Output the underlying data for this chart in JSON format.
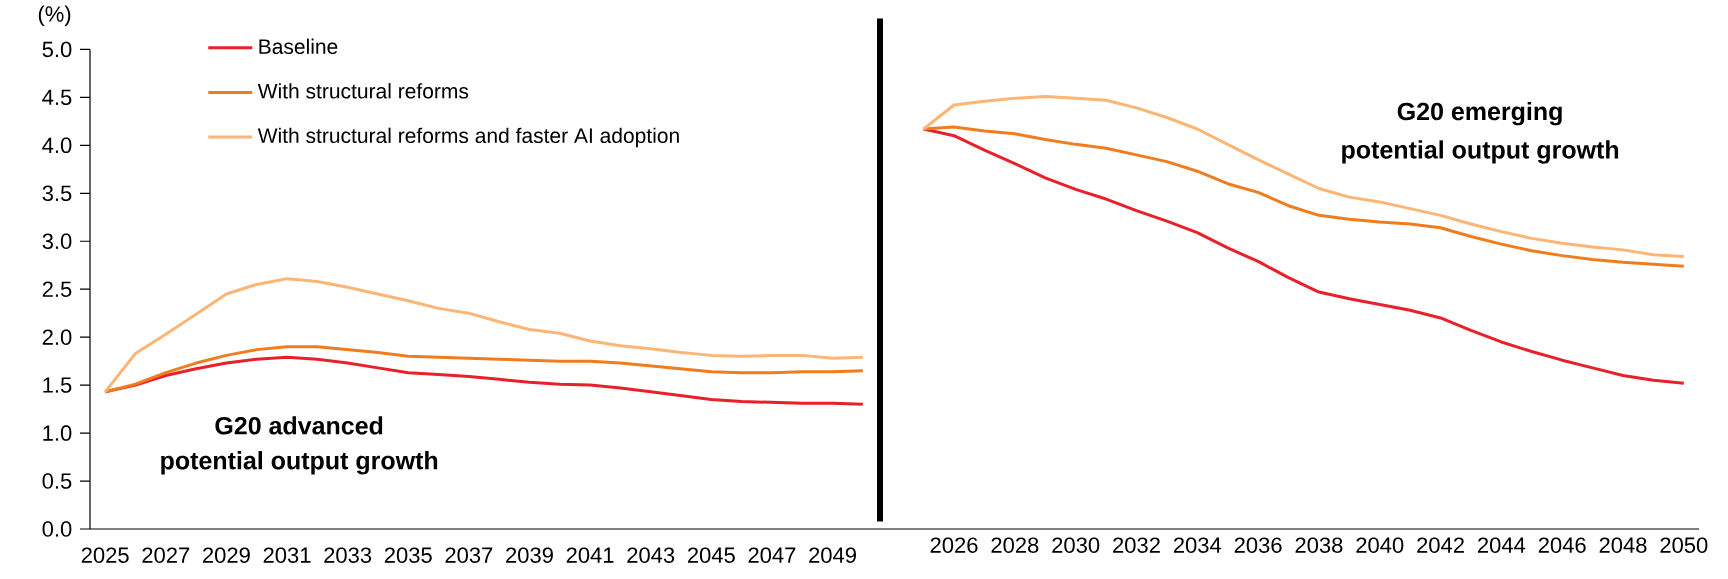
{
  "chart_data": [
    {
      "type": "line",
      "ylabel": "(%)",
      "legend": "top left",
      "grid": false,
      "categories": [
        "2025",
        null,
        "2027",
        null,
        "2029",
        null,
        "2031",
        null,
        "2033",
        null,
        "2035",
        null,
        "2037",
        null,
        "2039",
        null,
        "2041",
        null,
        "2043",
        null,
        "2045",
        null,
        "2047",
        null,
        "2049",
        null
      ],
      "ylim": [
        0,
        5
      ],
      "yticks": [
        {
          "value": 0,
          "label": "0.0"
        },
        0.5,
        {
          "value": 1,
          "label": "1.0"
        },
        1.5,
        {
          "value": 2,
          "label": "2.0"
        },
        2.5,
        {
          "value": 3,
          "label": "3.0"
        },
        3.5,
        {
          "value": 4,
          "label": "4.0"
        },
        4.5,
        {
          "value": 5,
          "label": "5.0"
        }
      ],
      "series": [
        {
          "name": "Baseline",
          "color": "#e8202a",
          "values": [
            1.43,
            1.5,
            1.6,
            1.67,
            1.73,
            1.77,
            1.79,
            1.77,
            1.73,
            1.68,
            1.63,
            1.61,
            1.59,
            1.56,
            1.53,
            1.51,
            1.5,
            1.47,
            1.43,
            1.39,
            1.35,
            1.33,
            1.32,
            1.31,
            1.31,
            1.3
          ]
        },
        {
          "name": "With structural reforms",
          "color": "#f07c1e",
          "values": [
            1.43,
            1.51,
            1.63,
            1.73,
            1.81,
            1.87,
            1.9,
            1.9,
            1.87,
            1.84,
            1.8,
            1.79,
            1.78,
            1.77,
            1.76,
            1.75,
            1.75,
            1.73,
            1.7,
            1.67,
            1.64,
            1.63,
            1.63,
            1.64,
            1.64,
            1.65
          ]
        },
        {
          "name": "With structural reforms and faster AI adoption",
          "color": "#fbb574",
          "values": [
            1.43,
            1.83,
            2.03,
            2.24,
            2.45,
            2.55,
            2.61,
            2.58,
            2.52,
            2.45,
            2.38,
            2.3,
            2.25,
            2.16,
            2.08,
            2.04,
            1.96,
            1.91,
            1.88,
            1.84,
            1.81,
            1.8,
            1.81,
            1.81,
            1.78,
            1.79
          ]
        }
      ],
      "annotations": [
        "G20 advanced",
        "potential output growth"
      ]
    },
    {
      "type": "line",
      "legend": false,
      "grid": false,
      "tick_labels": "x",
      "categories": [
        null,
        "2026",
        null,
        "2028",
        null,
        "2030",
        null,
        "2032",
        null,
        "2034",
        null,
        "2036",
        null,
        "2038",
        null,
        "2040",
        null,
        "2042",
        null,
        "2044",
        null,
        "2046",
        null,
        "2048",
        null,
        "2050"
      ],
      "ylim": [
        0,
        5
      ],
      "series": [
        {
          "color": "#e8202a",
          "values": [
            4.17,
            4.1,
            3.95,
            3.81,
            3.66,
            3.54,
            3.44,
            3.32,
            3.21,
            3.09,
            2.93,
            2.79,
            2.62,
            2.47,
            2.4,
            2.34,
            2.28,
            2.2,
            2.07,
            1.95,
            1.85,
            1.76,
            1.68,
            1.6,
            1.55,
            1.52
          ]
        },
        {
          "color": "#f07c1e",
          "values": [
            4.17,
            4.19,
            4.15,
            4.12,
            4.06,
            4.01,
            3.97,
            3.9,
            3.83,
            3.73,
            3.6,
            3.51,
            3.37,
            3.27,
            3.23,
            3.2,
            3.18,
            3.14,
            3.05,
            2.97,
            2.9,
            2.85,
            2.81,
            2.78,
            2.76,
            2.74
          ]
        },
        {
          "color": "#fbb574",
          "values": [
            4.17,
            4.42,
            4.46,
            4.49,
            4.51,
            4.49,
            4.47,
            4.39,
            4.29,
            4.17,
            4.01,
            3.85,
            3.7,
            3.55,
            3.46,
            3.41,
            3.34,
            3.27,
            3.18,
            3.1,
            3.03,
            2.98,
            2.94,
            2.91,
            2.86,
            2.84
          ]
        }
      ],
      "annotations": [
        "G20 emerging",
        "potential output growth"
      ]
    }
  ]
}
